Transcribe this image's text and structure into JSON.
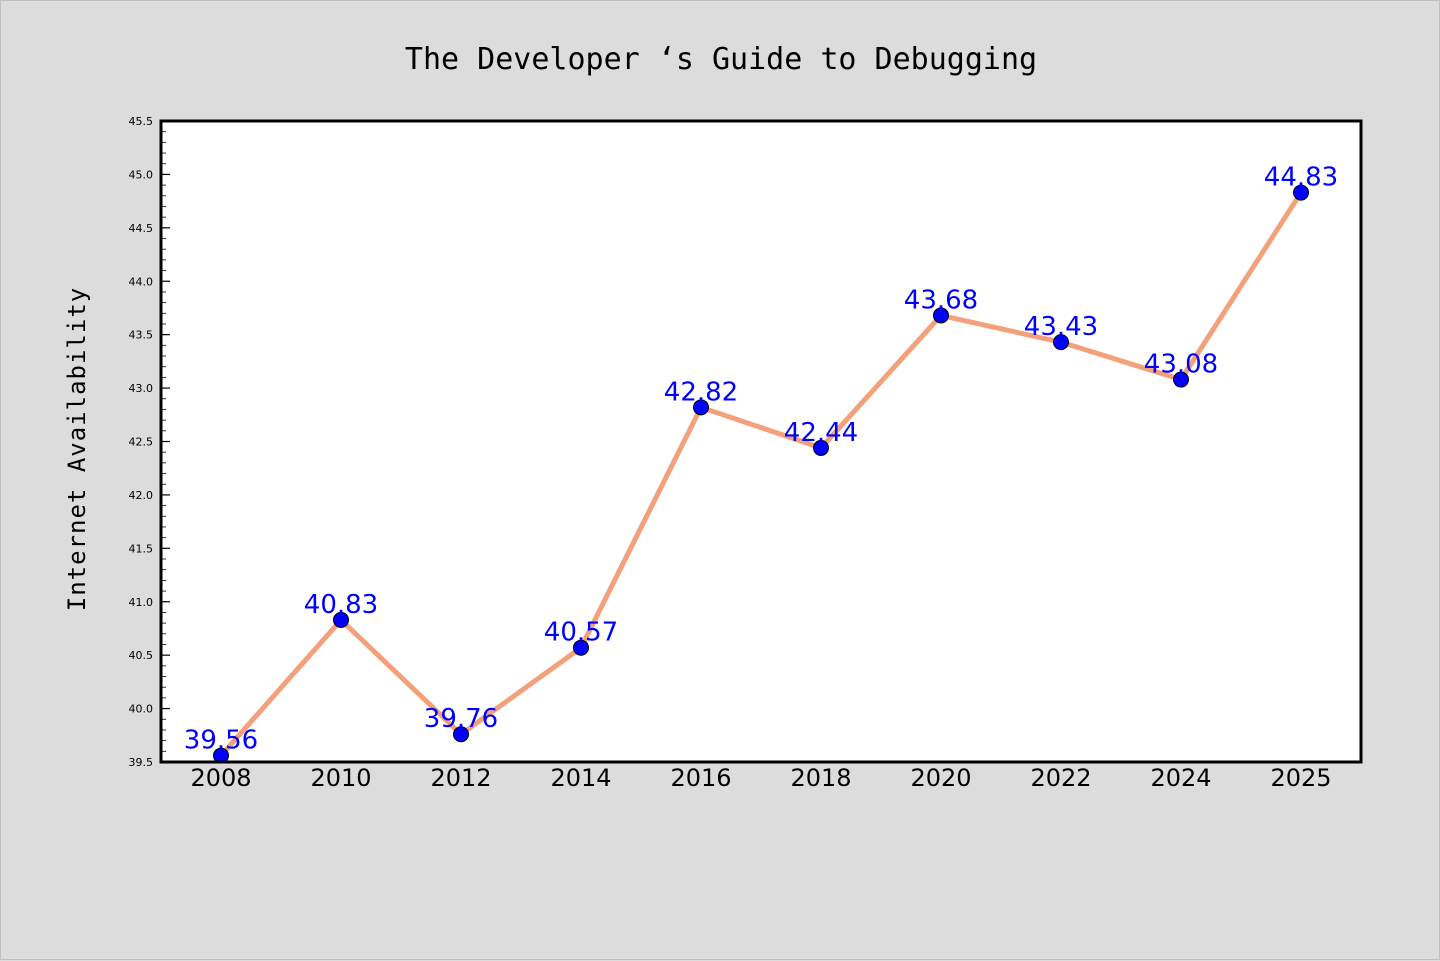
{
  "chart_data": {
    "type": "line",
    "title": "The Developer ‘s Guide to Debugging",
    "xlabel": "",
    "ylabel": "Internet Availability",
    "categories": [
      "2008",
      "2010",
      "2012",
      "2014",
      "2016",
      "2018",
      "2020",
      "2022",
      "2024",
      "2025"
    ],
    "series": [
      {
        "values": [
          39.56,
          40.83,
          39.76,
          40.57,
          42.82,
          42.44,
          43.68,
          43.43,
          43.08,
          44.83
        ]
      }
    ],
    "data_labels": [
      "39.56",
      "40.83",
      "39.76",
      "40.57",
      "42.82",
      "42.44",
      "43.68",
      "43.43",
      "43.08",
      "44.83"
    ],
    "ylim": [
      39.5,
      45.5
    ],
    "yticks": [
      "39.5",
      "40.0",
      "40.5",
      "41.0",
      "41.5",
      "42.0",
      "42.5",
      "43.0",
      "43.5",
      "44.0",
      "44.5",
      "45.0",
      "45.5"
    ],
    "grid": false,
    "legend": "none",
    "colors": {
      "line": "#f4a07a",
      "marker": "#0000ff",
      "label": "#0000ff",
      "plot_background": "#ffffff",
      "figure_background": "#dcdcdc"
    }
  }
}
